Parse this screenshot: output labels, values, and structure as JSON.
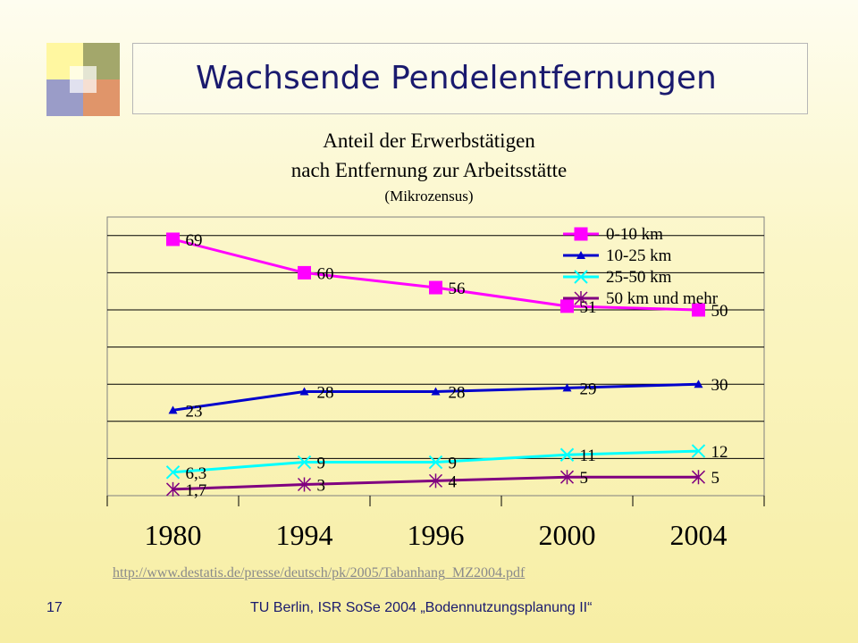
{
  "slide": {
    "title": "Wachsende Pendelentfernungen",
    "source_url": "http://www.destatis.de/presse/deutsch/pk/2005/Tabanhang_MZ2004.pdf",
    "slide_number": "17",
    "footer": "TU Berlin, ISR SoSe 2004 „Bodennutzungsplanung II“",
    "colors": {
      "title": "#1a1a6e",
      "logo": [
        "#fff7a0",
        "#a3a76b",
        "#9a9cc8",
        "#e0956a"
      ]
    }
  },
  "chart_data": {
    "type": "line",
    "title_lines": [
      "Anteil der Erwerbstätigen",
      "nach Entfernung zur Arbeitsstätte",
      "(Mikrozensus)"
    ],
    "categories": [
      "1980",
      "1994",
      "1996",
      "2000",
      "2004"
    ],
    "ylim": [
      0,
      75
    ],
    "y_gridlines": [
      10,
      20,
      30,
      40,
      50,
      60,
      70
    ],
    "grid": true,
    "legend_position": "top-right",
    "series": [
      {
        "name": "0-10 km",
        "values": [
          69,
          60,
          56,
          51,
          50
        ],
        "labels": [
          "69",
          "60",
          "56",
          "51",
          "50"
        ],
        "color": "#ff00ff",
        "marker": "square"
      },
      {
        "name": "10-25 km",
        "values": [
          23,
          28,
          28,
          29,
          30
        ],
        "labels": [
          "23",
          "28",
          "28",
          "29",
          "30"
        ],
        "color": "#0000cc",
        "marker": "triangle"
      },
      {
        "name": "25-50 km",
        "values": [
          6.3,
          9,
          9,
          11,
          12
        ],
        "labels": [
          "6,3",
          "9",
          "9",
          "11",
          "12"
        ],
        "color": "#00ffff",
        "marker": "x"
      },
      {
        "name": "50 km und mehr",
        "values": [
          1.7,
          3,
          4,
          5,
          5
        ],
        "labels": [
          "1,7",
          "3",
          "4",
          "5",
          "5"
        ],
        "color": "#800080",
        "marker": "star"
      }
    ]
  }
}
